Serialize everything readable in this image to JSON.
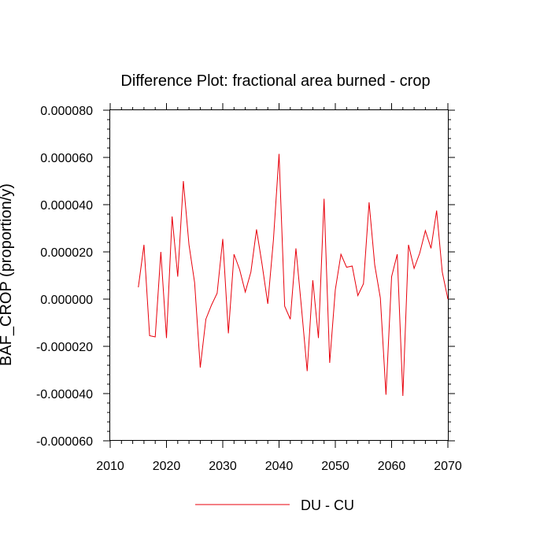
{
  "chart_data": {
    "type": "line",
    "title": "Difference Plot: fractional area burned - crop",
    "ylabel": "BAF_CROP  (proportion/y)",
    "xlabel": "",
    "xlim": [
      2010,
      2070
    ],
    "ylim": [
      -6e-05,
      8e-05
    ],
    "x_ticks": [
      2010,
      2020,
      2030,
      2040,
      2050,
      2060,
      2070
    ],
    "x_tick_labels": [
      "2010",
      "2020",
      "2030",
      "2040",
      "2050",
      "2060",
      "2070"
    ],
    "y_ticks": [
      -6e-05,
      -4e-05,
      -2e-05,
      0,
      2e-05,
      4e-05,
      6e-05,
      8e-05
    ],
    "y_tick_labels": [
      "-0.000060",
      "-0.000040",
      "-0.000020",
      "0.000000",
      "0.000020",
      "0.000040",
      "0.000060",
      "0.000080"
    ],
    "legend_position": "bottom-center",
    "grid": false,
    "series": [
      {
        "name": "DU - CU",
        "color": "#e8000b",
        "x": [
          2015,
          2016,
          2017,
          2018,
          2019,
          2020,
          2021,
          2022,
          2023,
          2024,
          2025,
          2026,
          2027,
          2028,
          2029,
          2030,
          2031,
          2032,
          2033,
          2034,
          2035,
          2036,
          2037,
          2038,
          2039,
          2040,
          2041,
          2042,
          2043,
          2044,
          2045,
          2046,
          2047,
          2048,
          2049,
          2050,
          2051,
          2052,
          2053,
          2054,
          2055,
          2056,
          2057,
          2058,
          2059,
          2060,
          2061,
          2062,
          2063,
          2064,
          2065,
          2066,
          2067,
          2068,
          2069,
          2070
        ],
        "y": [
          5e-06,
          2.3e-05,
          -1.55e-05,
          -1.6e-05,
          2e-05,
          -1.65e-05,
          3.5e-05,
          9.5e-06,
          5e-05,
          2.3e-05,
          7e-06,
          -2.9e-05,
          -8.5e-06,
          -2.5e-06,
          2.5e-06,
          2.55e-05,
          -1.45e-05,
          1.9e-05,
          1.25e-05,
          3e-06,
          1.15e-05,
          2.95e-05,
          1.45e-05,
          -2e-06,
          2.5e-05,
          6.15e-05,
          -3e-06,
          -8.5e-06,
          2.15e-05,
          -4e-06,
          -3.05e-05,
          8e-06,
          -1.65e-05,
          4.25e-05,
          -2.7e-05,
          4e-06,
          1.9e-05,
          1.35e-05,
          1.4e-05,
          1.5e-06,
          6.5e-06,
          4.1e-05,
          1.45e-05,
          5e-07,
          -4.05e-05,
          9.5e-06,
          1.9e-05,
          -4.1e-05,
          2.3e-05,
          1.3e-05,
          1.95e-05,
          2.9e-05,
          2.15e-05,
          3.75e-05,
          1.15e-05,
          0.0
        ]
      }
    ]
  }
}
